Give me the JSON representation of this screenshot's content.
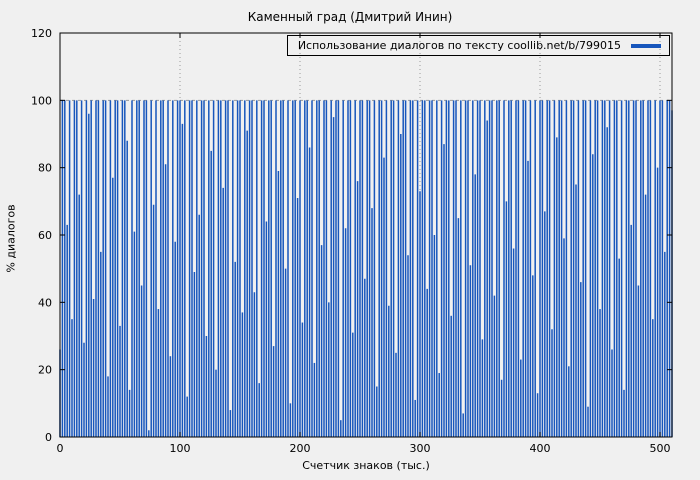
{
  "page": {
    "background": "#f0f0f0"
  },
  "chart_data": {
    "type": "bar",
    "variant": "impulses",
    "title": "Каменный град (Дмитрий Инин)",
    "legend": "Использование диалогов по тексту coollib.net/b/799015",
    "xlabel": "Счетчик знаков (тыс.)",
    "ylabel": "% диалогов",
    "xlim": [
      0,
      510
    ],
    "ylim": [
      0,
      120
    ],
    "xticks": [
      0,
      100,
      200,
      300,
      400,
      500
    ],
    "yticks": [
      0,
      20,
      40,
      60,
      80,
      100,
      120
    ],
    "grid_y": [
      100
    ],
    "grid_on": true,
    "legend_position": "top-right",
    "x_start": 0,
    "x_step": 2,
    "bar_color": "#1756bc",
    "axis_color": "#000000",
    "grid_color": "#9a9a9a",
    "values": [
      26,
      100,
      100,
      63,
      100,
      35,
      100,
      100,
      72,
      100,
      28,
      100,
      96,
      100,
      41,
      100,
      100,
      55,
      100,
      100,
      18,
      100,
      77,
      100,
      100,
      33,
      100,
      100,
      88,
      14,
      100,
      61,
      100,
      100,
      45,
      100,
      100,
      2,
      100,
      69,
      100,
      38,
      100,
      100,
      81,
      100,
      24,
      100,
      58,
      100,
      100,
      93,
      100,
      12,
      100,
      100,
      49,
      100,
      66,
      100,
      100,
      30,
      100,
      85,
      100,
      20,
      100,
      100,
      74,
      100,
      100,
      8,
      100,
      52,
      100,
      100,
      37,
      100,
      91,
      100,
      100,
      43,
      100,
      16,
      100,
      100,
      64,
      100,
      100,
      27,
      100,
      79,
      100,
      100,
      50,
      100,
      10,
      100,
      100,
      71,
      100,
      34,
      100,
      100,
      86,
      100,
      22,
      100,
      100,
      57,
      100,
      100,
      40,
      100,
      95,
      100,
      100,
      5,
      100,
      62,
      100,
      100,
      31,
      100,
      76,
      100,
      100,
      47,
      100,
      100,
      68,
      100,
      15,
      100,
      100,
      83,
      100,
      39,
      100,
      100,
      25,
      100,
      90,
      100,
      100,
      54,
      100,
      100,
      11,
      100,
      73,
      100,
      100,
      44,
      100,
      100,
      60,
      100,
      19,
      100,
      87,
      100,
      100,
      36,
      100,
      100,
      65,
      100,
      7,
      100,
      100,
      51,
      100,
      78,
      100,
      100,
      29,
      100,
      94,
      100,
      100,
      42,
      100,
      100,
      17,
      100,
      70,
      100,
      100,
      56,
      100,
      100,
      23,
      100,
      100,
      82,
      100,
      48,
      100,
      13,
      100,
      100,
      67,
      100,
      100,
      32,
      100,
      89,
      100,
      100,
      59,
      100,
      21,
      100,
      100,
      75,
      100,
      46,
      100,
      100,
      9,
      100,
      84,
      100,
      100,
      38,
      100,
      100,
      92,
      100,
      26,
      100,
      100,
      53,
      100,
      14,
      100,
      100,
      63,
      100,
      100,
      45,
      100,
      100,
      72,
      100,
      100,
      35,
      100,
      80,
      100,
      100,
      55,
      100,
      100,
      97
    ]
  }
}
